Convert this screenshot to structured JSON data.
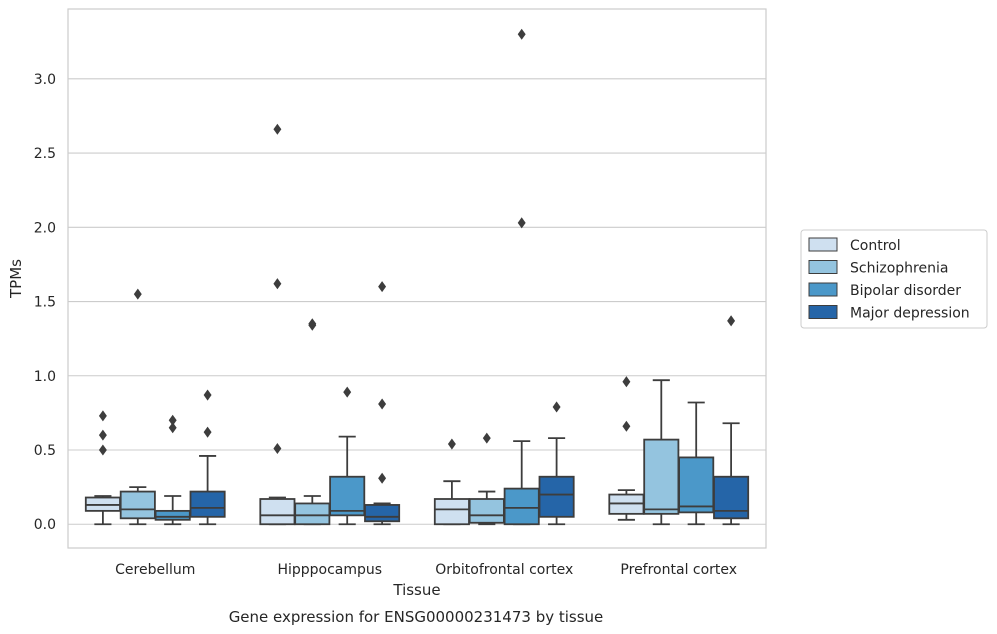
{
  "caption": "Gene expression for ENSG00000231473 by tissue",
  "chart_data": {
    "type": "box",
    "xlabel": "Tissue",
    "ylabel": "TPMs",
    "ylim": [
      -0.16,
      3.47
    ],
    "yticks": [
      "0.0",
      "0.5",
      "1.0",
      "1.5",
      "2.0",
      "2.5",
      "3.0"
    ],
    "grid": "horizontal",
    "legend_position": "right",
    "categories": [
      "Cerebellum",
      "Hipppocampus",
      "Orbitofrontal cortex",
      "Prefrontal cortex"
    ],
    "series": [
      {
        "name": "Control",
        "color": "#cfe0f0",
        "boxes": [
          {
            "whisker_low": 0.0,
            "q1": 0.09,
            "median": 0.13,
            "q3": 0.18,
            "whisker_high": 0.19,
            "outliers": [
              0.5,
              0.6,
              0.73
            ]
          },
          {
            "whisker_low": 0.0,
            "q1": 0.0,
            "median": 0.06,
            "q3": 0.17,
            "whisker_high": 0.18,
            "outliers": [
              0.51,
              1.62,
              2.66
            ]
          },
          {
            "whisker_low": 0.0,
            "q1": 0.0,
            "median": 0.1,
            "q3": 0.17,
            "whisker_high": 0.29,
            "outliers": [
              0.54
            ]
          },
          {
            "whisker_low": 0.03,
            "q1": 0.07,
            "median": 0.14,
            "q3": 0.2,
            "whisker_high": 0.23,
            "outliers": [
              0.66,
              0.96
            ]
          }
        ]
      },
      {
        "name": "Schizophrenia",
        "color": "#94c4df",
        "boxes": [
          {
            "whisker_low": 0.0,
            "q1": 0.04,
            "median": 0.1,
            "q3": 0.22,
            "whisker_high": 0.25,
            "outliers": [
              1.55
            ]
          },
          {
            "whisker_low": 0.0,
            "q1": 0.0,
            "median": 0.06,
            "q3": 0.14,
            "whisker_high": 0.19,
            "outliers": [
              1.34,
              1.35
            ]
          },
          {
            "whisker_low": 0.0,
            "q1": 0.01,
            "median": 0.06,
            "q3": 0.17,
            "whisker_high": 0.22,
            "outliers": [
              0.58
            ]
          },
          {
            "whisker_low": 0.0,
            "q1": 0.07,
            "median": 0.1,
            "q3": 0.57,
            "whisker_high": 0.97,
            "outliers": []
          }
        ]
      },
      {
        "name": "Bipolar disorder",
        "color": "#4b98c9",
        "boxes": [
          {
            "whisker_low": 0.0,
            "q1": 0.03,
            "median": 0.05,
            "q3": 0.09,
            "whisker_high": 0.19,
            "outliers": [
              0.65,
              0.7
            ]
          },
          {
            "whisker_low": 0.0,
            "q1": 0.06,
            "median": 0.09,
            "q3": 0.32,
            "whisker_high": 0.59,
            "outliers": [
              0.89
            ]
          },
          {
            "whisker_low": 0.0,
            "q1": 0.0,
            "median": 0.11,
            "q3": 0.24,
            "whisker_high": 0.56,
            "outliers": [
              2.03,
              3.3
            ]
          },
          {
            "whisker_low": 0.0,
            "q1": 0.08,
            "median": 0.12,
            "q3": 0.45,
            "whisker_high": 0.82,
            "outliers": []
          }
        ]
      },
      {
        "name": "Major depression",
        "color": "#2565a8",
        "boxes": [
          {
            "whisker_low": 0.0,
            "q1": 0.05,
            "median": 0.11,
            "q3": 0.22,
            "whisker_high": 0.46,
            "outliers": [
              0.62,
              0.87
            ]
          },
          {
            "whisker_low": 0.0,
            "q1": 0.02,
            "median": 0.05,
            "q3": 0.13,
            "whisker_high": 0.14,
            "outliers": [
              0.31,
              0.81,
              1.6
            ]
          },
          {
            "whisker_low": 0.0,
            "q1": 0.05,
            "median": 0.2,
            "q3": 0.32,
            "whisker_high": 0.58,
            "outliers": [
              0.79
            ]
          },
          {
            "whisker_low": 0.0,
            "q1": 0.04,
            "median": 0.09,
            "q3": 0.32,
            "whisker_high": 0.68,
            "outliers": [
              1.37
            ]
          }
        ]
      }
    ]
  }
}
